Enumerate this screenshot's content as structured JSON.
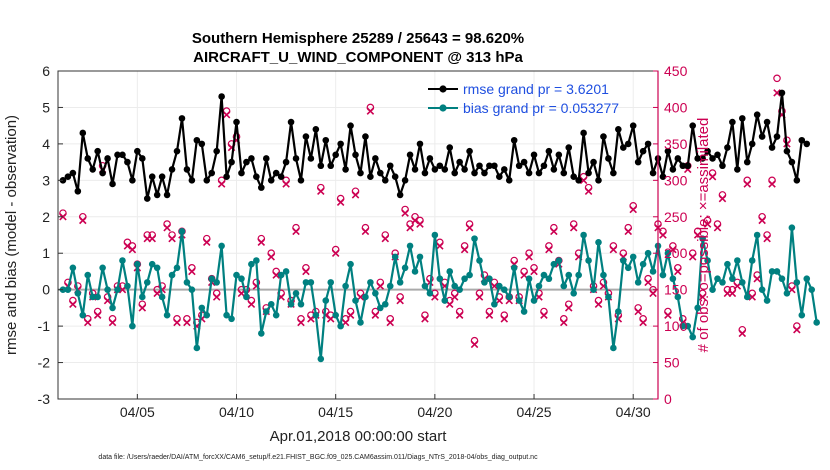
{
  "chart_data": {
    "type": "line",
    "title_line1": "Southern Hemisphere 25289 / 25643 = 98.620%",
    "title_line2": "AIRCRAFT_U_WIND_COMPONENT @ 313 hPa",
    "xlabel": "Apr.01,2018 00:00:00 start",
    "ylabel_left": "rmse and bias (model - observation)",
    "ylabel_right": "# of obs: o=possible; ×=assimilated",
    "footnote": "data file: /Users/raeder/DAI/ATM_forcXX/CAM6_setup/f.e21.FHIST_BGC.f09_025.CAM6assim.011/Diags_NTrS_2018-04/obs_diag_output.nc",
    "xlim": [
      1,
      31.25
    ],
    "ylim_left": [
      -3,
      6
    ],
    "ylim_right": [
      0,
      450
    ],
    "x_ticks": [
      5,
      10,
      15,
      20,
      25,
      30
    ],
    "x_tick_labels": [
      "04/05",
      "04/10",
      "04/15",
      "04/20",
      "04/25",
      "04/30"
    ],
    "y_left_ticks": [
      -3,
      -2,
      -1,
      0,
      1,
      2,
      3,
      4,
      5,
      6
    ],
    "y_left_tick_labels": [
      "-3",
      "-2",
      "-1",
      "0",
      "1",
      "2",
      "3",
      "4",
      "5",
      "6"
    ],
    "y_right_ticks": [
      0,
      50,
      100,
      150,
      200,
      250,
      300,
      350,
      400,
      450
    ],
    "y_right_tick_labels": [
      "0",
      "50",
      "100",
      "150",
      "200",
      "250",
      "300",
      "350",
      "400",
      "450"
    ],
    "legend": [
      {
        "name": "rmse grand pr = 3.6201",
        "color": "#000000"
      },
      {
        "name": "bias grand pr = 0.053277",
        "color": "#008080"
      }
    ],
    "x_start": 1.25,
    "x_step": 0.25,
    "series": [
      {
        "name": "rmse",
        "color": "#000000",
        "axis": "left",
        "values": [
          3.0,
          3.1,
          3.2,
          2.7,
          4.3,
          3.6,
          3.3,
          3.8,
          3.2,
          3.6,
          2.9,
          3.7,
          3.7,
          3.5,
          3.0,
          3.8,
          3.6,
          2.5,
          3.1,
          2.6,
          3.1,
          2.6,
          3.3,
          3.8,
          4.7,
          3.3,
          3.0,
          4.1,
          4.0,
          3.0,
          3.2,
          3.8,
          5.3,
          3.1,
          3.5,
          4.6,
          3.2,
          3.5,
          3.6,
          3.1,
          2.8,
          3.6,
          3.0,
          3.2,
          3.1,
          3.5,
          4.6,
          3.6,
          3.0,
          4.2,
          3.6,
          4.4,
          3.4,
          4.1,
          3.4,
          3.7,
          4.0,
          3.3,
          4.5,
          3.7,
          3.2,
          4.2,
          3.1,
          3.6,
          3.2,
          3.0,
          3.4,
          3.1,
          2.6,
          3.0,
          3.7,
          3.3,
          4.0,
          3.2,
          3.6,
          3.3,
          3.4,
          3.3,
          3.9,
          3.2,
          3.5,
          3.3,
          3.8,
          3.2,
          3.4,
          3.2,
          3.4,
          3.4,
          3.1,
          3.3,
          3.0,
          4.1,
          3.4,
          3.5,
          3.2,
          3.7,
          3.2,
          3.4,
          3.8,
          3.3,
          3.7,
          3.2,
          3.9,
          3.1,
          3.0,
          4.3,
          3.2,
          3.5,
          3.0,
          4.2,
          3.6,
          3.2,
          4.4,
          3.9,
          4.0,
          4.5,
          3.5,
          3.8,
          4.0,
          3.2,
          3.6,
          3.1,
          3.8,
          3.3,
          3.6,
          3.4,
          3.4,
          4.5,
          3.6,
          3.6,
          3.8,
          3.6,
          3.7,
          3.4,
          3.9,
          4.6,
          3.3,
          4.7,
          3.5,
          4.0,
          4.8,
          4.2,
          4.6,
          3.9,
          4.2,
          5.4,
          3.8,
          3.5,
          3.0,
          4.1,
          4.0
        ]
      },
      {
        "name": "bias",
        "color": "#008080",
        "axis": "left",
        "values": [
          0.0,
          0.0,
          0.6,
          -0.1,
          -0.7,
          0.4,
          -0.2,
          -0.2,
          0.6,
          0.0,
          -0.5,
          0.0,
          0.8,
          0.1,
          -1.0,
          0.7,
          -0.2,
          0.2,
          0.7,
          0.6,
          -0.2,
          -0.7,
          0.4,
          0.6,
          1.6,
          0.2,
          0.0,
          -1.6,
          -0.5,
          -0.7,
          0.3,
          0.2,
          1.2,
          -0.7,
          -0.8,
          0.4,
          0.3,
          -0.2,
          0.7,
          0.8,
          -1.2,
          -0.6,
          -0.4,
          -0.7,
          0.4,
          0.5,
          -0.4,
          -0.1,
          -0.4,
          0.2,
          0.2,
          -0.7,
          -1.9,
          -0.3,
          0.2,
          -0.7,
          -1.0,
          0.1,
          0.7,
          -0.3,
          -0.9,
          -0.2,
          0.2,
          -0.1,
          -0.5,
          -0.4,
          0.1,
          0.9,
          0.2,
          0.6,
          1.2,
          0.5,
          0.9,
          0.1,
          -0.1,
          1.5,
          0.3,
          -0.3,
          0.5,
          0.1,
          0.0,
          0.3,
          0.4,
          1.4,
          0.8,
          0.2,
          0.3,
          -0.4,
          0.1,
          0.0,
          -0.2,
          0.6,
          -0.3,
          -0.6,
          0.3,
          -0.3,
          0.1,
          0.4,
          0.3,
          0.7,
          0.8,
          0.1,
          0.4,
          -0.1,
          0.4,
          1.5,
          0.8,
          0.0,
          1.3,
          0.4,
          -0.2,
          -1.6,
          -0.6,
          0.8,
          0.6,
          0.9,
          0.2,
          0.7,
          1.0,
          0.5,
          1.2,
          0.4,
          1.0,
          0.3,
          -0.2,
          -1.0,
          -1.0,
          -1.3,
          -0.5,
          1.4,
          0.8,
          0.0,
          0.3,
          0.2,
          0.7,
          0.3,
          0.8,
          0.2,
          -0.2,
          0.8,
          1.5,
          0.0,
          -0.3,
          0.5,
          0.5,
          0.3,
          -0.1,
          1.7,
          0.2,
          -0.7,
          0.3,
          0.0,
          -0.9
        ]
      },
      {
        "name": "possible",
        "color": "#cc0052",
        "axis": "right",
        "values": [
          255,
          160,
          135,
          155,
          250,
          110,
          145,
          120,
          320,
          140,
          110,
          155,
          155,
          215,
          210,
          185,
          130,
          225,
          225,
          150,
          155,
          240,
          225,
          110,
          230,
          110,
          180,
          105,
          115,
          220,
          165,
          145,
          300,
          395,
          350,
          360,
          150,
          150,
          135,
          160,
          220,
          125,
          200,
          175,
          145,
          300,
          135,
          235,
          110,
          180,
          115,
          120,
          290,
          120,
          115,
          205,
          275,
          110,
          120,
          285,
          145,
          235,
          400,
          120,
          160,
          225,
          110,
          200,
          140,
          260,
          240,
          250,
          245,
          115,
          165,
          145,
          215,
          160,
          135,
          145,
          120,
          210,
          240,
          80,
          145,
          170,
          120,
          160,
          140,
          115,
          140,
          190,
          140,
          175,
          200,
          180,
          145,
          120,
          210,
          235,
          190,
          110,
          130,
          240,
          200,
          305,
          290,
          155,
          135,
          160,
          145,
          210,
          115,
          200,
          235,
          265,
          125,
          110,
          165,
          150,
          240,
          230,
          120,
          210,
          180,
          110,
          320,
          200,
          230,
          145,
          245,
          310,
          240,
          280,
          150,
          150,
          160,
          95,
          300,
          145,
          170,
          250,
          225,
          300,
          440,
          395,
          355,
          155,
          100
        ]
      },
      {
        "name": "assimilated",
        "color": "#cc0052",
        "axis": "right",
        "values": [
          250,
          155,
          130,
          150,
          245,
          105,
          140,
          115,
          315,
          135,
          105,
          150,
          150,
          210,
          205,
          180,
          125,
          220,
          220,
          145,
          150,
          235,
          220,
          105,
          225,
          105,
          175,
          100,
          110,
          215,
          160,
          140,
          295,
          390,
          345,
          355,
          145,
          145,
          130,
          155,
          215,
          120,
          195,
          170,
          140,
          295,
          130,
          230,
          105,
          175,
          110,
          115,
          285,
          115,
          110,
          200,
          270,
          105,
          115,
          280,
          140,
          230,
          395,
          115,
          155,
          220,
          105,
          195,
          135,
          255,
          235,
          245,
          240,
          110,
          160,
          140,
          210,
          155,
          130,
          140,
          115,
          205,
          235,
          75,
          140,
          165,
          115,
          155,
          135,
          110,
          135,
          185,
          135,
          170,
          195,
          175,
          140,
          115,
          205,
          230,
          185,
          105,
          125,
          235,
          195,
          300,
          285,
          150,
          130,
          155,
          140,
          205,
          110,
          195,
          230,
          260,
          120,
          105,
          160,
          145,
          235,
          225,
          115,
          205,
          175,
          105,
          315,
          195,
          225,
          140,
          240,
          305,
          235,
          275,
          145,
          145,
          155,
          90,
          295,
          140,
          165,
          245,
          220,
          295,
          420,
          390,
          350,
          150,
          95
        ]
      }
    ]
  }
}
